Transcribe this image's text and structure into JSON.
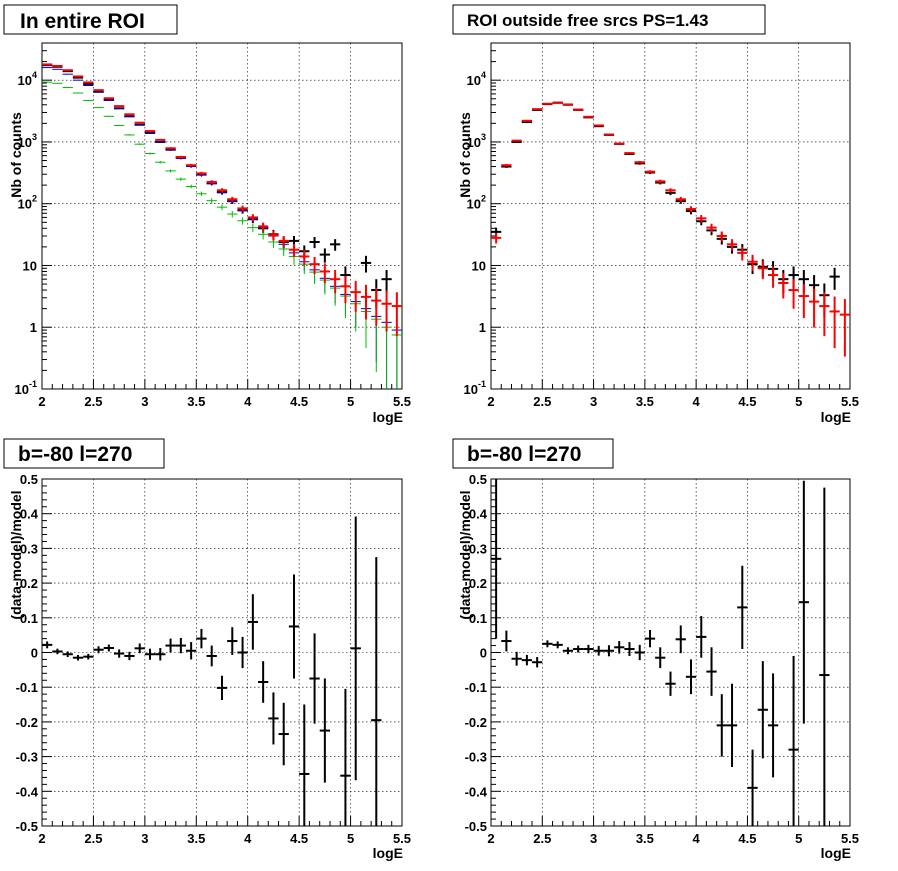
{
  "colors": {
    "data": "#000000",
    "model": "#ff0000",
    "blue": "#0000cc",
    "green": "#00bb00",
    "grid": "#000000"
  },
  "chart_data": [
    {
      "type": "scatter",
      "title": "In entire ROI",
      "xlabel": "logE",
      "ylabel": "Nb of counts",
      "xlim": [
        2,
        5.5
      ],
      "ylim": [
        0.1,
        40000
      ],
      "log_y": true,
      "grid": true,
      "x_ticks": [
        "2",
        "2.5",
        "3",
        "3.5",
        "4",
        "4.5",
        "5",
        "5.5"
      ],
      "y_ticks": [
        {
          "base": "10",
          "exp": "-1",
          "value": 0.1
        },
        {
          "base": "1",
          "exp": "",
          "value": 1
        },
        {
          "base": "10",
          "exp": "",
          "value": 10
        },
        {
          "base": "10",
          "exp": "2",
          "value": 100
        },
        {
          "base": "10",
          "exp": "3",
          "value": 1000
        },
        {
          "base": "10",
          "exp": "4",
          "value": 10000
        }
      ],
      "x": [
        2.05,
        2.15,
        2.25,
        2.35,
        2.45,
        2.55,
        2.65,
        2.75,
        2.85,
        2.95,
        3.05,
        3.15,
        3.25,
        3.35,
        3.45,
        3.55,
        3.65,
        3.75,
        3.85,
        3.95,
        4.05,
        4.15,
        4.25,
        4.35,
        4.45,
        4.55,
        4.65,
        4.75,
        4.85,
        4.95,
        5.05,
        5.15,
        5.25,
        5.35,
        5.45
      ],
      "series": [
        {
          "color": "#000000",
          "values": [
            17500,
            16500,
            14000,
            11000,
            8700,
            6500,
            4800,
            3500,
            2600,
            1900,
            1400,
            1000,
            750,
            570,
            410,
            300,
            215,
            155,
            110,
            78,
            56,
            40,
            32,
            24,
            25,
            17,
            24,
            15,
            22,
            7,
            null,
            11,
            4,
            6,
            null
          ]
        },
        {
          "color": "#0000cc",
          "values": [
            16000,
            15000,
            12500,
            10000,
            8200,
            6400,
            4700,
            3500,
            2600,
            1900,
            1400,
            1000,
            740,
            540,
            400,
            290,
            210,
            150,
            110,
            78,
            56,
            41,
            30,
            22,
            16,
            11.5,
            8.5,
            6.2,
            4.6,
            3.4,
            2.6,
            2.0,
            1.5,
            1.2,
            0.9
          ]
        },
        {
          "color": "#00bb00",
          "values": [
            9300,
            8900,
            7600,
            6200,
            4700,
            3600,
            2600,
            1850,
            1300,
            920,
            650,
            470,
            340,
            250,
            190,
            145,
            112,
            88,
            68,
            53,
            41,
            32,
            24,
            18.5,
            14,
            10.5,
            7.8,
            5.8,
            4.3,
            3.2,
            2.4,
            1.8,
            1.35,
            1.0,
            0.75
          ]
        },
        {
          "color": "#ff0000",
          "values": [
            18000,
            17000,
            14500,
            11500,
            9200,
            6900,
            5100,
            3800,
            2800,
            2050,
            1500,
            1080,
            790,
            570,
            420,
            310,
            225,
            165,
            118,
            84,
            60,
            43,
            31,
            25,
            18,
            14,
            10.5,
            8.0,
            6.0,
            4.6,
            3.7,
            3.1,
            2.7,
            2.4,
            2.2
          ]
        }
      ]
    },
    {
      "type": "scatter",
      "title": "ROI outside free srcs PS=1.43",
      "xlabel": "logE",
      "ylabel": "Nb of counts",
      "xlim": [
        2,
        5.5
      ],
      "ylim": [
        0.1,
        40000
      ],
      "log_y": true,
      "grid": true,
      "x_ticks": [
        "2",
        "2.5",
        "3",
        "3.5",
        "4",
        "4.5",
        "5",
        "5.5"
      ],
      "y_ticks": [
        {
          "base": "10",
          "exp": "-1",
          "value": 0.1
        },
        {
          "base": "1",
          "exp": "",
          "value": 1
        },
        {
          "base": "10",
          "exp": "",
          "value": 10
        },
        {
          "base": "10",
          "exp": "2",
          "value": 100
        },
        {
          "base": "10",
          "exp": "3",
          "value": 1000
        },
        {
          "base": "10",
          "exp": "4",
          "value": 10000
        }
      ],
      "x": [
        2.05,
        2.15,
        2.25,
        2.35,
        2.45,
        2.55,
        2.65,
        2.75,
        2.85,
        2.95,
        3.05,
        3.15,
        3.25,
        3.35,
        3.45,
        3.55,
        3.65,
        3.75,
        3.85,
        3.95,
        4.05,
        4.15,
        4.25,
        4.35,
        4.45,
        4.55,
        4.65,
        4.75,
        4.85,
        4.95,
        5.05,
        5.15,
        5.25,
        5.35,
        5.45
      ],
      "series": [
        {
          "color": "#000000",
          "values": [
            35,
            400,
            1000,
            2100,
            3300,
            4100,
            4300,
            4000,
            3300,
            2500,
            1800,
            1300,
            930,
            640,
            450,
            320,
            220,
            150,
            110,
            76,
            52,
            37,
            27,
            20,
            18,
            10.5,
            9.5,
            8.8,
            6.0,
            7.0,
            6.0,
            4.8,
            3.3,
            6.6,
            null
          ]
        },
        {
          "color": "#ff0000",
          "values": [
            28,
            420,
            1050,
            2200,
            3400,
            4150,
            4350,
            4050,
            3350,
            2550,
            1850,
            1320,
            940,
            660,
            470,
            330,
            230,
            165,
            118,
            82,
            58,
            41,
            30,
            22,
            16,
            11.5,
            9.0,
            7.0,
            5.2,
            4.0,
            3.2,
            2.6,
            2.2,
            1.8,
            1.6
          ]
        }
      ]
    },
    {
      "type": "scatter",
      "title": "b=-80 l=270",
      "xlabel": "logE",
      "ylabel": "(data-model)/model",
      "xlim": [
        2,
        5.5
      ],
      "ylim": [
        -0.5,
        0.5
      ],
      "grid": true,
      "x_ticks": [
        "2",
        "2.5",
        "3",
        "3.5",
        "4",
        "4.5",
        "5",
        "5.5"
      ],
      "y_ticks": [
        "-0.5",
        "-0.4",
        "-0.3",
        "-0.2",
        "-0.1",
        "0",
        "0.1",
        "0.2",
        "0.3",
        "0.4",
        "0.5"
      ],
      "x": [
        2.05,
        2.15,
        2.25,
        2.35,
        2.45,
        2.55,
        2.65,
        2.75,
        2.85,
        2.95,
        3.05,
        3.15,
        3.25,
        3.35,
        3.45,
        3.55,
        3.65,
        3.75,
        3.85,
        3.95,
        4.05,
        4.15,
        4.25,
        4.35,
        4.45,
        4.55,
        4.65,
        4.75,
        4.85,
        4.95,
        5.05,
        5.15,
        5.25
      ],
      "values": [
        0.022,
        0.003,
        -0.005,
        -0.015,
        -0.012,
        0.008,
        0.013,
        -0.003,
        -0.01,
        0.012,
        -0.005,
        -0.005,
        0.02,
        0.02,
        0.005,
        0.04,
        -0.01,
        -0.102,
        0.033,
        0.0,
        0.088,
        -0.085,
        -0.19,
        -0.235,
        0.075,
        -0.35,
        -0.075,
        -0.225,
        null,
        -0.355,
        0.012,
        null,
        -0.195
      ],
      "errors": [
        0.01,
        0.008,
        0.008,
        0.008,
        0.008,
        0.01,
        0.01,
        0.012,
        0.012,
        0.014,
        0.016,
        0.018,
        0.02,
        0.022,
        0.025,
        0.028,
        0.03,
        0.035,
        0.04,
        0.045,
        0.08,
        0.06,
        0.075,
        0.09,
        0.15,
        0.2,
        0.13,
        0.15,
        null,
        0.25,
        0.38,
        null,
        0.47
      ]
    },
    {
      "type": "scatter",
      "title": "b=-80 l=270",
      "xlabel": "logE",
      "ylabel": "(data-model)/model",
      "xlim": [
        2,
        5.5
      ],
      "ylim": [
        -0.5,
        0.5
      ],
      "grid": true,
      "x_ticks": [
        "2",
        "2.5",
        "3",
        "3.5",
        "4",
        "4.5",
        "5",
        "5.5"
      ],
      "y_ticks": [
        "-0.5",
        "-0.4",
        "-0.3",
        "-0.2",
        "-0.1",
        "0",
        "0.1",
        "0.2",
        "0.3",
        "0.4",
        "0.5"
      ],
      "x": [
        2.05,
        2.15,
        2.25,
        2.35,
        2.45,
        2.55,
        2.65,
        2.75,
        2.85,
        2.95,
        3.05,
        3.15,
        3.25,
        3.35,
        3.45,
        3.55,
        3.65,
        3.75,
        3.85,
        3.95,
        4.05,
        4.15,
        4.25,
        4.35,
        4.45,
        4.55,
        4.65,
        4.75,
        4.85,
        4.95,
        5.05,
        5.15,
        5.25
      ],
      "values": [
        0.27,
        0.033,
        -0.018,
        -0.022,
        -0.028,
        0.025,
        0.022,
        0.005,
        0.01,
        0.01,
        0.005,
        0.005,
        0.015,
        0.01,
        0.0,
        0.04,
        -0.015,
        -0.09,
        0.038,
        -0.07,
        0.045,
        -0.055,
        -0.21,
        -0.21,
        0.13,
        -0.39,
        -0.165,
        -0.21,
        null,
        -0.28,
        0.145,
        null,
        -0.065
      ],
      "errors": [
        0.23,
        0.03,
        0.02,
        0.015,
        0.015,
        0.01,
        0.01,
        0.01,
        0.01,
        0.012,
        0.014,
        0.016,
        0.018,
        0.02,
        0.022,
        0.025,
        0.03,
        0.035,
        0.04,
        0.05,
        0.06,
        0.07,
        0.09,
        0.12,
        0.12,
        0.11,
        0.14,
        0.15,
        null,
        0.27,
        0.35,
        null,
        0.54
      ]
    }
  ]
}
